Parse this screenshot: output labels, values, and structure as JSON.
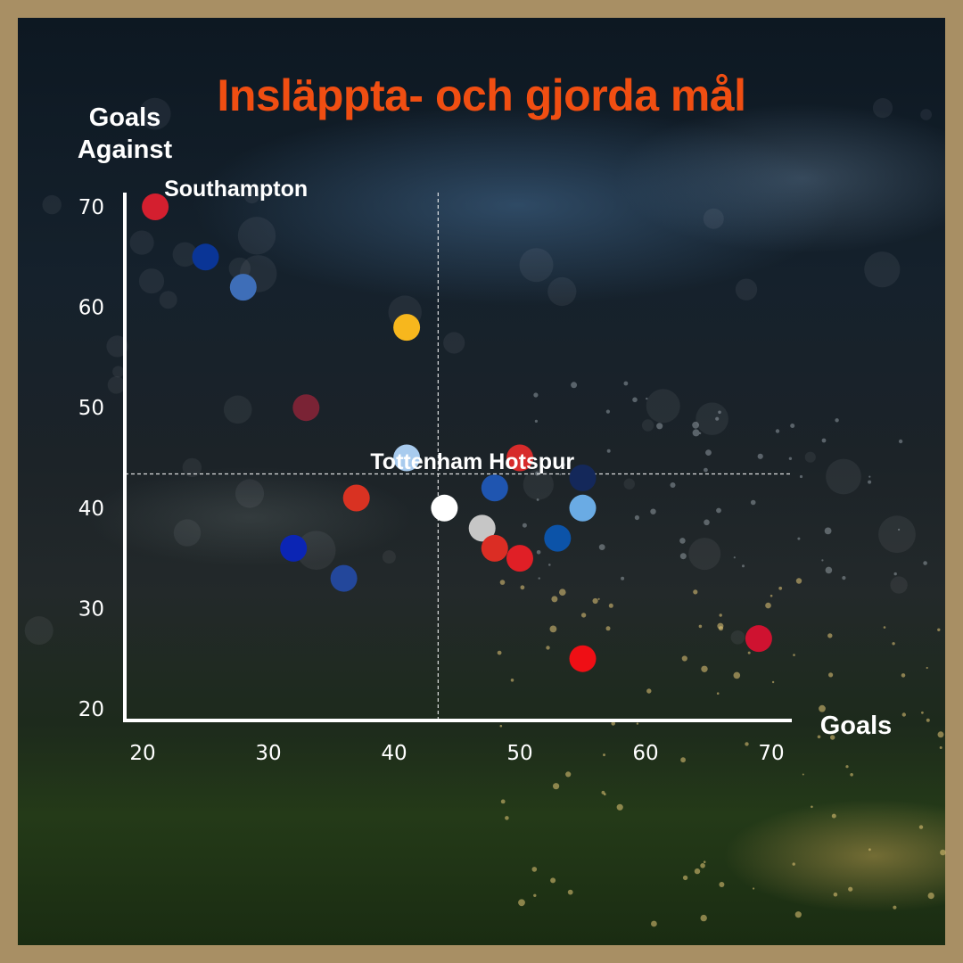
{
  "chart_data": {
    "type": "scatter",
    "title": "Insläppta- och gjorda mål",
    "xlabel": "Goals",
    "ylabel_lines": [
      "Goals",
      "Against"
    ],
    "xlim": [
      20,
      72
    ],
    "ylim": [
      20,
      72
    ],
    "xticks": [
      20,
      30,
      40,
      50,
      60,
      70
    ],
    "yticks": [
      20,
      30,
      40,
      50,
      60,
      70
    ],
    "reference_lines": {
      "x": 43.5,
      "y": 43.4,
      "style": "dashed"
    },
    "points": [
      {
        "x": 21,
        "y": 70,
        "color": "#d41f2f",
        "label": "Southampton"
      },
      {
        "x": 25,
        "y": 65,
        "color": "#0a3596"
      },
      {
        "x": 28,
        "y": 62,
        "color": "#3e6eb8"
      },
      {
        "x": 41,
        "y": 58,
        "color": "#f7b71d"
      },
      {
        "x": 33,
        "y": 50,
        "color": "#7a2335"
      },
      {
        "x": 41,
        "y": 45,
        "color": "#a8cbee"
      },
      {
        "x": 50,
        "y": 45,
        "color": "#d72b2b"
      },
      {
        "x": 37,
        "y": 41,
        "color": "#d93222"
      },
      {
        "x": 44,
        "y": 40,
        "color": "#ffffff",
        "label": "Tottenham Hotspur"
      },
      {
        "x": 48,
        "y": 42,
        "color": "#1f55b0"
      },
      {
        "x": 55,
        "y": 43,
        "color": "#14285a"
      },
      {
        "x": 55,
        "y": 40,
        "color": "#6aabe4"
      },
      {
        "x": 47,
        "y": 38,
        "color": "#c6c6c6"
      },
      {
        "x": 48,
        "y": 36,
        "color": "#db2d24"
      },
      {
        "x": 50,
        "y": 35,
        "color": "#e01f26"
      },
      {
        "x": 53,
        "y": 37,
        "color": "#0c53a8"
      },
      {
        "x": 32,
        "y": 36,
        "color": "#0b25b4"
      },
      {
        "x": 36,
        "y": 33,
        "color": "#23479b"
      },
      {
        "x": 55,
        "y": 25,
        "color": "#ef0f15"
      },
      {
        "x": 69,
        "y": 27,
        "color": "#cf1230"
      }
    ]
  }
}
